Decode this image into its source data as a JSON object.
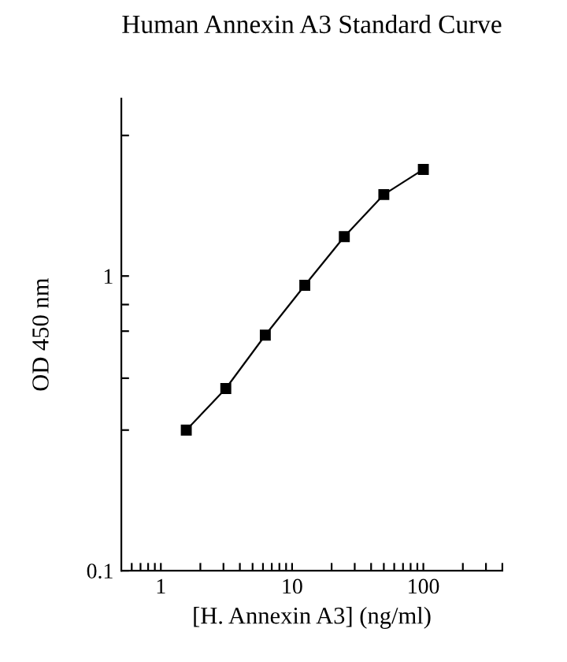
{
  "chart_data": {
    "type": "line",
    "title": "Human Annexin A3 Standard Curve",
    "xlabel": "[H. Annexin A3] (ng/ml)",
    "ylabel": "OD 450 nm",
    "x": [
      1.5625,
      3.125,
      6.25,
      12.5,
      25,
      50,
      100
    ],
    "series": [
      {
        "color": "#000000",
        "values": [
          0.3,
          0.415,
          0.63,
          0.93,
          1.36,
          1.89,
          2.3
        ]
      }
    ],
    "log": "xy",
    "marker": "square",
    "line_style": "solid",
    "grid": false,
    "legend": false,
    "xlim": [
      0.5,
      400
    ],
    "ylim": [
      0.1,
      4
    ],
    "xticks": [
      {
        "value": 0.6,
        "label": null
      },
      {
        "value": 0.7,
        "label": null
      },
      {
        "value": 0.8,
        "label": null
      },
      {
        "value": 0.9,
        "label": null
      },
      1,
      {
        "value": 2,
        "label": null
      },
      {
        "value": 3,
        "label": null
      },
      {
        "value": 4,
        "label": null
      },
      {
        "value": 5,
        "label": null
      },
      {
        "value": 6,
        "label": null
      },
      {
        "value": 7,
        "label": null
      },
      {
        "value": 8,
        "label": null
      },
      {
        "value": 9,
        "label": null
      },
      10,
      {
        "value": 20,
        "label": null
      },
      {
        "value": 30,
        "label": null
      },
      {
        "value": 40,
        "label": null
      },
      {
        "value": 50,
        "label": null
      },
      {
        "value": 60,
        "label": null
      },
      {
        "value": 70,
        "label": null
      },
      {
        "value": 80,
        "label": null
      },
      {
        "value": 90,
        "label": null
      },
      100,
      {
        "value": 200,
        "label": null
      },
      {
        "value": 300,
        "label": null
      },
      {
        "value": 400,
        "label": null
      }
    ],
    "yticks": [
      0.1,
      {
        "value": 0.3,
        "label": null
      },
      {
        "value": 0.45,
        "label": null
      },
      {
        "value": 0.65,
        "label": null
      },
      {
        "value": 0.8,
        "label": null
      },
      1,
      {
        "value": 3,
        "label": null
      }
    ]
  }
}
